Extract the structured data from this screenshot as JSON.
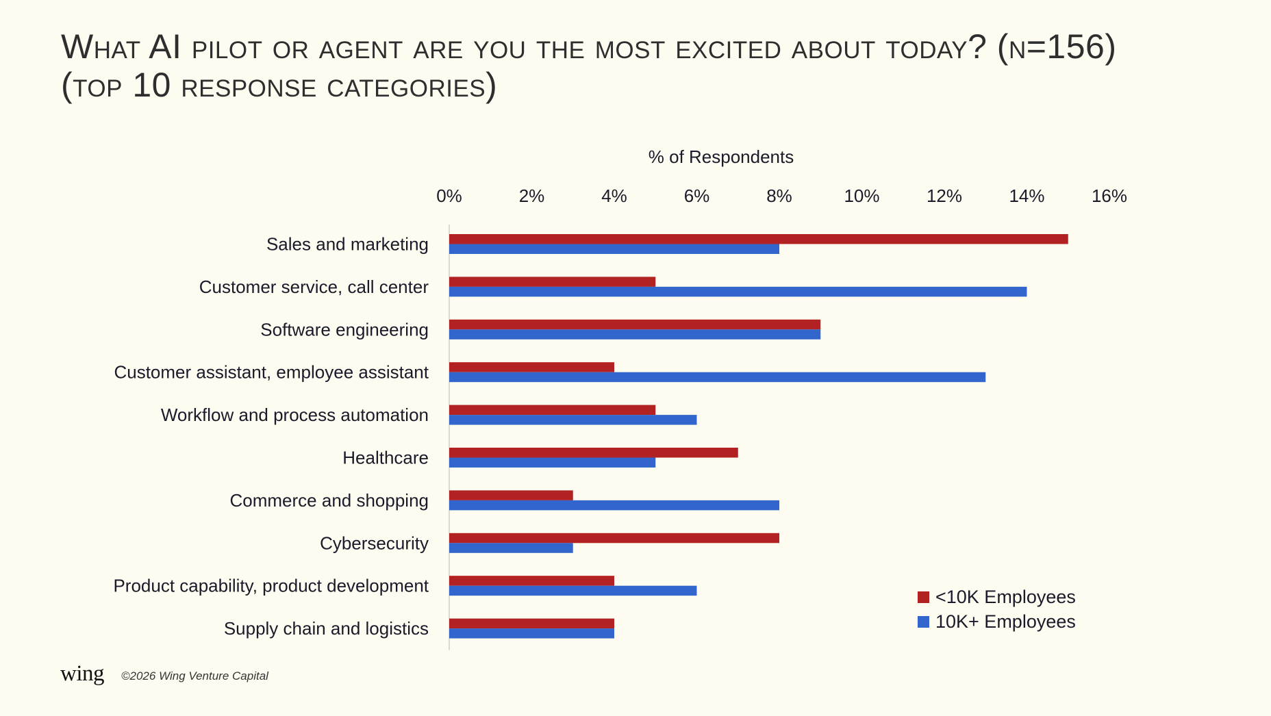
{
  "title": {
    "line1": "What AI pilot or agent are you the most excited about today? (n=156)",
    "line2": "(top 10 response categories)"
  },
  "footer": {
    "logo": "wing",
    "copyright": "©2026 Wing Venture Capital"
  },
  "colors": {
    "background": "#FEFCF0",
    "small_company": "#B22222",
    "large_company": "#3366CC"
  },
  "chart_data": {
    "type": "bar",
    "orientation": "horizontal",
    "title": "What AI pilot or agent are you the most excited about today? (n=156) (top 10 response categories)",
    "xlabel": "% of Respondents",
    "ylabel": "",
    "xlim": [
      0,
      16
    ],
    "x_ticks": [
      0,
      2,
      4,
      6,
      8,
      10,
      12,
      14,
      16
    ],
    "x_tick_labels": [
      "0%",
      "2%",
      "4%",
      "6%",
      "8%",
      "10%",
      "12%",
      "14%",
      "16%"
    ],
    "axis_position": "top",
    "grid": false,
    "legend_position": "bottom-right",
    "categories": [
      "Sales and marketing",
      "Customer service, call center",
      "Software engineering",
      "Customer assistant, employee assistant",
      "Workflow and process automation",
      "Healthcare",
      "Commerce and shopping",
      "Cybersecurity",
      "Product capability, product development",
      "Supply chain and logistics"
    ],
    "series": [
      {
        "name": "<10K Employees",
        "color": "#B22222",
        "values": [
          15,
          5,
          9,
          4,
          5,
          7,
          3,
          8,
          4,
          4
        ]
      },
      {
        "name": "10K+ Employees",
        "color": "#3366CC",
        "values": [
          8,
          14,
          9,
          13,
          6,
          5,
          8,
          3,
          6,
          4
        ]
      }
    ]
  }
}
